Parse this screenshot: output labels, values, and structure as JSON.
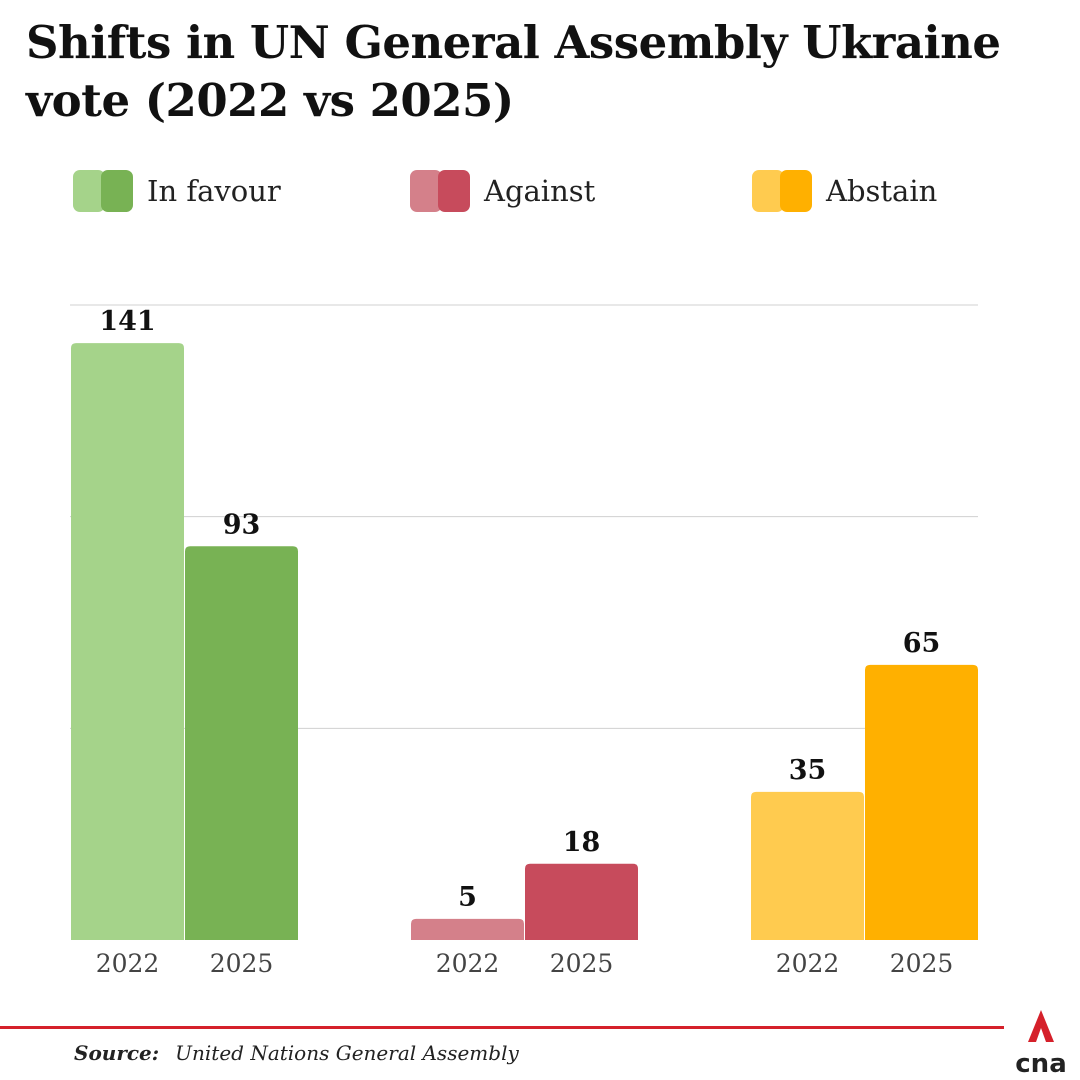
{
  "title": "Shifts in UN General Assembly Ukraine vote (2022 vs 2025)",
  "legend": [
    {
      "label": "In favour",
      "color_2022": "#a5d38a",
      "color_2025": "#78b254"
    },
    {
      "label": "Against",
      "color_2022": "#d4808a",
      "color_2025": "#c74b5c"
    },
    {
      "label": "Abstain",
      "color_2022": "#ffcb4f",
      "color_2025": "#ffb000"
    }
  ],
  "chart_data": {
    "type": "bar",
    "categories": [
      "In favour",
      "Against",
      "Abstain"
    ],
    "x_tick_labels": [
      "2022",
      "2025"
    ],
    "series": [
      {
        "name": "2022",
        "values": [
          141,
          5,
          35
        ]
      },
      {
        "name": "2025",
        "values": [
          93,
          18,
          65
        ]
      }
    ],
    "ylim": [
      0,
      150
    ],
    "gridlines": [
      50,
      100,
      150
    ],
    "grid": true,
    "legend_position": "top",
    "data_labels": true
  },
  "source": {
    "label": "Source:",
    "text": "United Nations General Assembly"
  },
  "brand": {
    "name": "cna",
    "accent_color": "#d5202a"
  }
}
